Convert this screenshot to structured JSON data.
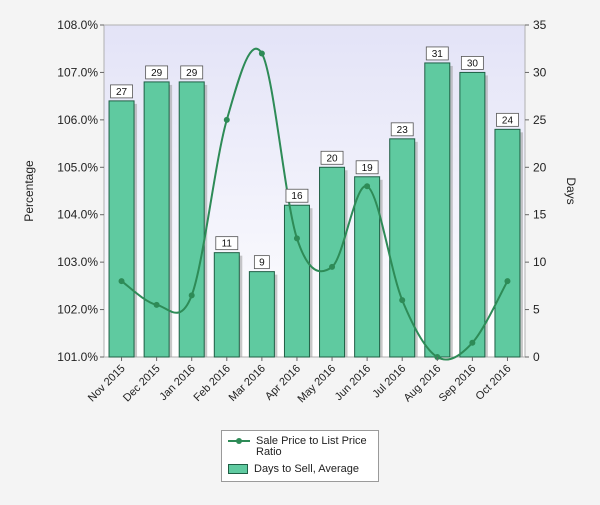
{
  "chart_data": {
    "type": "bar",
    "title": "",
    "xlabel": "",
    "ylabel": "Percentage",
    "y2label": "Days",
    "categories": [
      "Nov 2015",
      "Dec 2015",
      "Jan 2016",
      "Feb 2016",
      "Mar 2016",
      "Apr 2016",
      "May 2016",
      "Jun 2016",
      "Jul 2016",
      "Aug 2016",
      "Sep 2016",
      "Oct 2016"
    ],
    "ylim": [
      101.0,
      108.0
    ],
    "y_ticks": [
      "101.0%",
      "102.0%",
      "103.0%",
      "104.0%",
      "105.0%",
      "106.0%",
      "107.0%",
      "108.0%"
    ],
    "y2lim": [
      0,
      35
    ],
    "y2_ticks": [
      "0",
      "5",
      "10",
      "15",
      "20",
      "25",
      "30",
      "35"
    ],
    "grid": false,
    "legend_position": "bottom",
    "series": [
      {
        "name": "Sale Price to List Price Ratio",
        "type": "line",
        "axis": "left",
        "color": "#2e8b57",
        "values": [
          102.6,
          102.1,
          102.3,
          106.0,
          107.4,
          103.5,
          102.9,
          104.6,
          102.2,
          101.0,
          101.3,
          102.6
        ]
      },
      {
        "name": "Days to Sell, Average",
        "type": "bar",
        "axis": "right",
        "color": "#5fcaa0",
        "values": [
          27,
          29,
          29,
          11,
          9,
          16,
          20,
          19,
          23,
          31,
          30,
          24
        ],
        "data_labels": [
          "27",
          "29",
          "29",
          "11",
          "9",
          "16",
          "20",
          "19",
          "23",
          "31",
          "30",
          "24"
        ]
      }
    ]
  },
  "legend": {
    "line_label": "Sale Price to List Price Ratio",
    "bar_label": "Days to Sell, Average"
  }
}
